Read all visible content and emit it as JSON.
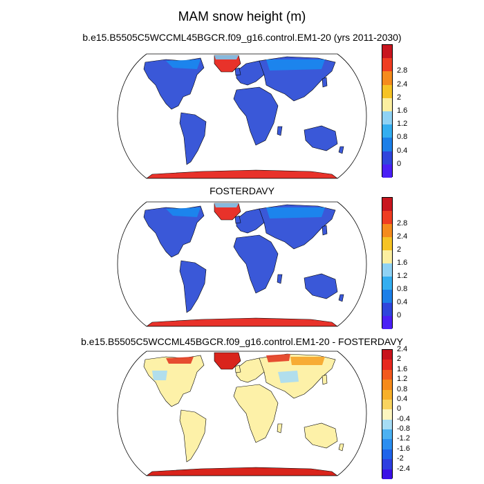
{
  "title": "MAM snow height (m)",
  "panels": [
    {
      "title": "b.e15.B5505C5WCCML45BGCR.f09_g16.control.EM1-20 (yrs 2011-2030)",
      "kind": "mean",
      "colorbar": {
        "colors": [
          "#4a1ff5",
          "#2f45dc",
          "#1c7fe8",
          "#34aef0",
          "#8fd2f4",
          "#fcefa0",
          "#f6c325",
          "#f58b1d",
          "#ef3d22",
          "#c8161f"
        ],
        "labels": [
          "0",
          "0.4",
          "0.8",
          "1.2",
          "1.6",
          "2",
          "2.4",
          "2.8"
        ]
      }
    },
    {
      "title": "FOSTERDAVY",
      "kind": "mean",
      "colorbar": {
        "colors": [
          "#4a1ff5",
          "#2f45dc",
          "#1c7fe8",
          "#34aef0",
          "#8fd2f4",
          "#fcefa0",
          "#f6c325",
          "#f58b1d",
          "#ef3d22",
          "#c8161f"
        ],
        "labels": [
          "0",
          "0.4",
          "0.8",
          "1.2",
          "1.6",
          "2",
          "2.4",
          "2.8"
        ]
      }
    },
    {
      "title": "b.e15.B5505C5WCCML45BGCR.f09_g16.control.EM1-20 - FOSTERDAVY",
      "kind": "diff",
      "colorbar": {
        "colors": [
          "#3a10e6",
          "#2d3fe0",
          "#1f64ea",
          "#2b8ef0",
          "#4cb1f2",
          "#a6dcf4",
          "#fdf6c0",
          "#f9d460",
          "#f7b02a",
          "#f58a1b",
          "#f3591e",
          "#e7281f",
          "#c8121c"
        ],
        "labels": [
          "-2.4",
          "-2",
          "-1.6",
          "-1.2",
          "-0.8",
          "-0.4",
          "0",
          "0.4",
          "0.8",
          "1.2",
          "1.6",
          "2",
          "2.4"
        ]
      }
    }
  ]
}
